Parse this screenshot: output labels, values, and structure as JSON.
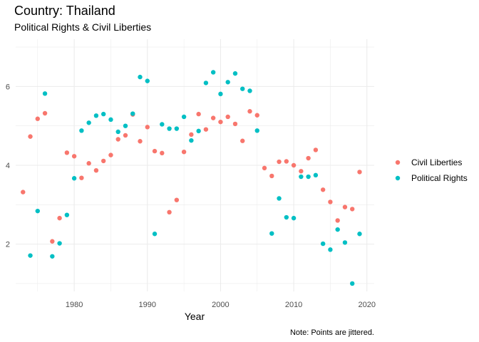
{
  "chart_data": {
    "type": "scatter",
    "title": "Country: Thailand",
    "subtitle": "Political Rights & Civil Liberties",
    "xlabel": "Year",
    "ylabel": "",
    "caption": "Note: Points are jittered.",
    "xlim": [
      1972,
      2021
    ],
    "ylim": [
      0.8,
      7.2
    ],
    "x_ticks": [
      1980,
      1990,
      2000,
      2010,
      2020
    ],
    "y_ticks": [
      2,
      4,
      6
    ],
    "grid": true,
    "legend_position": "right",
    "series": [
      {
        "name": "Civil Liberties",
        "color": "#F8766D",
        "points": [
          [
            1973,
            3.32
          ],
          [
            1974,
            4.73
          ],
          [
            1975,
            5.18
          ],
          [
            1976,
            5.32
          ],
          [
            1977,
            2.07
          ],
          [
            1978,
            2.66
          ],
          [
            1979,
            4.32
          ],
          [
            1980,
            4.23
          ],
          [
            1981,
            3.68
          ],
          [
            1982,
            4.05
          ],
          [
            1983,
            3.87
          ],
          [
            1984,
            4.11
          ],
          [
            1985,
            4.26
          ],
          [
            1986,
            4.66
          ],
          [
            1987,
            4.76
          ],
          [
            1988,
            5.29
          ],
          [
            1989,
            4.61
          ],
          [
            1990,
            4.97
          ],
          [
            1991,
            4.36
          ],
          [
            1992,
            4.31
          ],
          [
            1993,
            2.81
          ],
          [
            1994,
            3.12
          ],
          [
            1995,
            4.34
          ],
          [
            1996,
            4.78
          ],
          [
            1997,
            5.3
          ],
          [
            1998,
            4.91
          ],
          [
            1999,
            5.2
          ],
          [
            2000,
            5.1
          ],
          [
            2001,
            5.23
          ],
          [
            2002,
            5.05
          ],
          [
            2003,
            4.62
          ],
          [
            2004,
            5.37
          ],
          [
            2005,
            5.27
          ],
          [
            2006,
            3.93
          ],
          [
            2007,
            3.73
          ],
          [
            2008,
            4.09
          ],
          [
            2009,
            4.1
          ],
          [
            2010,
            4.0
          ],
          [
            2011,
            3.85
          ],
          [
            2012,
            4.18
          ],
          [
            2013,
            4.39
          ],
          [
            2014,
            3.38
          ],
          [
            2015,
            3.07
          ],
          [
            2016,
            2.6
          ],
          [
            2017,
            2.94
          ],
          [
            2018,
            2.89
          ],
          [
            2019,
            3.83
          ]
        ]
      },
      {
        "name": "Political Rights",
        "color": "#00BFC4",
        "points": [
          [
            1974,
            1.71
          ],
          [
            1975,
            2.84
          ],
          [
            1976,
            5.82
          ],
          [
            1977,
            1.69
          ],
          [
            1978,
            2.02
          ],
          [
            1979,
            2.74
          ],
          [
            1980,
            3.67
          ],
          [
            1981,
            4.88
          ],
          [
            1982,
            5.08
          ],
          [
            1983,
            5.26
          ],
          [
            1984,
            5.3
          ],
          [
            1985,
            5.16
          ],
          [
            1986,
            4.85
          ],
          [
            1987,
            5.0
          ],
          [
            1988,
            5.31
          ],
          [
            1989,
            6.24
          ],
          [
            1990,
            6.14
          ],
          [
            1991,
            2.26
          ],
          [
            1992,
            5.04
          ],
          [
            1993,
            4.93
          ],
          [
            1994,
            4.93
          ],
          [
            1995,
            5.23
          ],
          [
            1996,
            4.63
          ],
          [
            1997,
            4.87
          ],
          [
            1998,
            6.09
          ],
          [
            1999,
            6.36
          ],
          [
            2000,
            5.81
          ],
          [
            2001,
            6.11
          ],
          [
            2002,
            6.33
          ],
          [
            2003,
            5.94
          ],
          [
            2004,
            5.89
          ],
          [
            2005,
            4.88
          ],
          [
            2007,
            2.27
          ],
          [
            2008,
            3.16
          ],
          [
            2009,
            2.68
          ],
          [
            2010,
            2.66
          ],
          [
            2011,
            3.71
          ],
          [
            2012,
            3.71
          ],
          [
            2013,
            3.75
          ],
          [
            2014,
            2.01
          ],
          [
            2015,
            1.86
          ],
          [
            2016,
            2.37
          ],
          [
            2017,
            2.04
          ],
          [
            2018,
            1.0
          ],
          [
            2019,
            2.26
          ]
        ]
      }
    ]
  }
}
